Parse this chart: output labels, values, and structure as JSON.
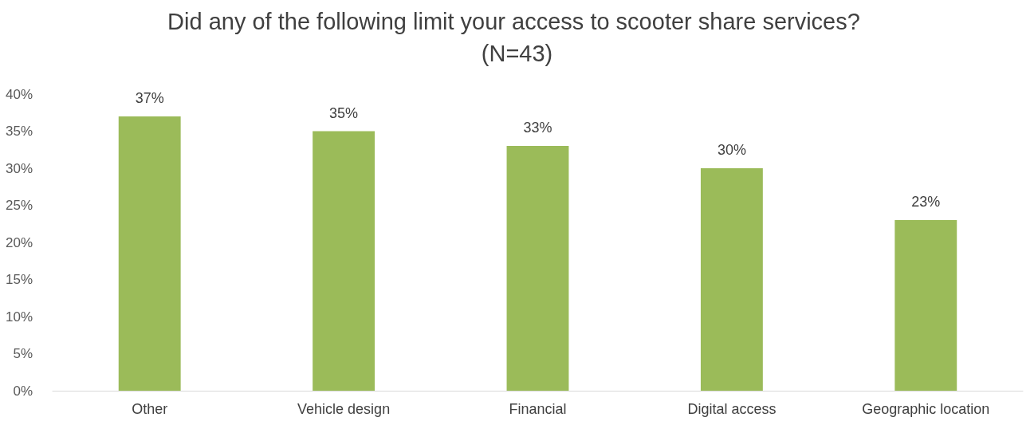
{
  "chart_data": {
    "type": "bar",
    "title": "Did any of the following limit your access to scooter share services? (N=43)",
    "categories": [
      "Other",
      "Vehicle design",
      "Financial",
      "Digital access",
      "Geographic location"
    ],
    "values": [
      37,
      35,
      33,
      30,
      23
    ],
    "value_labels": [
      "37%",
      "35%",
      "33%",
      "30%",
      "23%"
    ],
    "color": "#9bbb59",
    "ylim": [
      0,
      40
    ],
    "yticks": [
      {
        "value": 0,
        "label": "0%"
      },
      {
        "value": 5,
        "label": "5%"
      },
      {
        "value": 10,
        "label": "10%"
      },
      {
        "value": 15,
        "label": "15%"
      },
      {
        "value": 20,
        "label": "20%"
      },
      {
        "value": 25,
        "label": "25%"
      },
      {
        "value": 30,
        "label": "30%"
      },
      {
        "value": 35,
        "label": "35%"
      },
      {
        "value": 40,
        "label": "40%"
      }
    ],
    "grid": false
  }
}
